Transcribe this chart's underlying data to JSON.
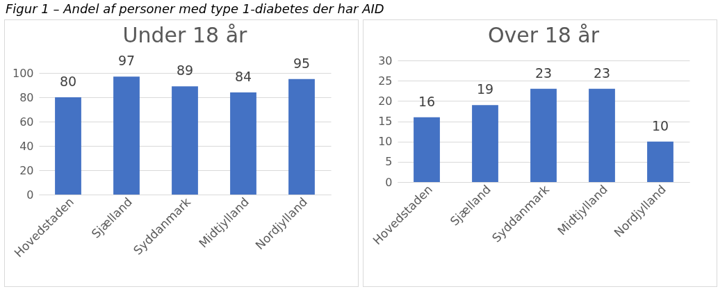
{
  "chart_data": [
    {
      "type": "bar",
      "title": "Under 18 år",
      "annotations": [
        "Figur 1 – Andel af personer med type 1-diabetes der har AID"
      ],
      "categories": [
        "Hovedstaden",
        "Sjælland",
        "Syddanmark",
        "Midtjylland",
        "Nordjylland"
      ],
      "values": [
        80,
        97,
        89,
        84,
        95
      ],
      "color": "#4472c4",
      "ylim": [
        0,
        100
      ],
      "yticks": [
        0,
        20,
        40,
        60,
        80,
        100
      ],
      "grid": "y",
      "data_labels": true
    },
    {
      "type": "bar",
      "title": "Over 18 år",
      "categories": [
        "Hovedstaden",
        "Sjælland",
        "Syddanmark",
        "Midtjylland",
        "Nordjylland"
      ],
      "values": [
        16,
        19,
        23,
        23,
        10
      ],
      "color": "#4472c4",
      "ylim": [
        0,
        30
      ],
      "yticks": [
        0,
        5,
        10,
        15,
        20,
        25,
        30
      ],
      "grid": "y",
      "data_labels": true
    }
  ]
}
